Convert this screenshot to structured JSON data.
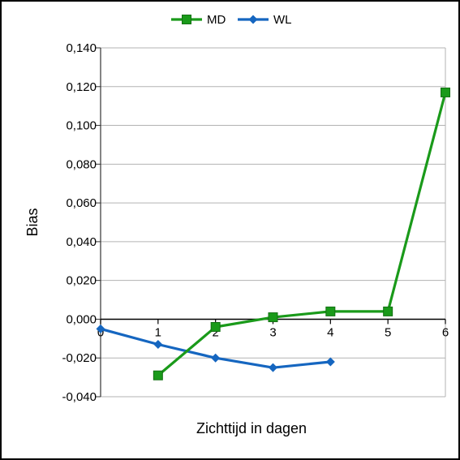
{
  "chart_data": {
    "type": "line",
    "xlabel": "Zichttijd in dagen",
    "ylabel": "Bias",
    "xlim": [
      0,
      6
    ],
    "ylim": [
      -0.04,
      0.14
    ],
    "x_ticks": [
      "0",
      "1",
      "2",
      "3",
      "4",
      "5",
      "6"
    ],
    "y_ticks": [
      "0,140",
      "0,120",
      "0,100",
      "0,080",
      "0,060",
      "0,040",
      "0,020",
      "0,000",
      "-0,020",
      "-0,040"
    ],
    "grid": "horizontal",
    "legend_position": "top",
    "series": [
      {
        "name": "MD",
        "color": "#1a9a1a",
        "marker": "square",
        "x": [
          1,
          2,
          3,
          4,
          5,
          6
        ],
        "values": [
          -0.029,
          -0.004,
          0.001,
          0.004,
          0.004,
          0.117
        ]
      },
      {
        "name": "WL",
        "color": "#1566c0",
        "marker": "diamond",
        "x": [
          0,
          1,
          2,
          3,
          4
        ],
        "values": [
          -0.005,
          -0.013,
          -0.02,
          -0.025,
          -0.022
        ]
      }
    ]
  }
}
